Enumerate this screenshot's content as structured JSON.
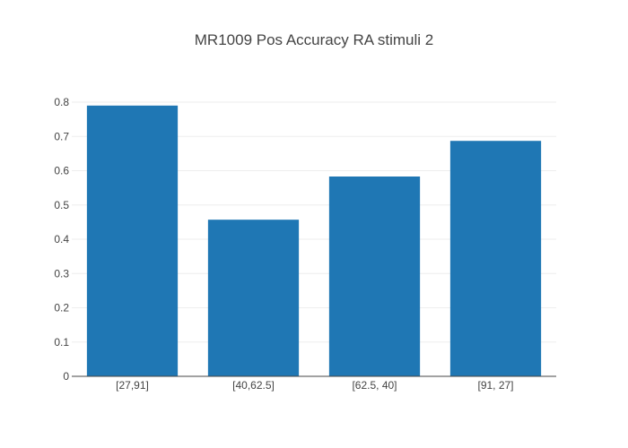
{
  "chart_data": {
    "type": "bar",
    "title": "MR1009 Pos Accuracy RA stimuli 2",
    "xlabel": "",
    "ylabel": "",
    "categories": [
      "[27,91]",
      "[40,62.5]",
      "[62.5, 40]",
      "[91, 27]"
    ],
    "values": [
      0.79,
      0.457,
      0.583,
      0.687
    ],
    "ylim": [
      0,
      0.8
    ],
    "yticks": [
      "0",
      "0.1",
      "0.2",
      "0.3",
      "0.4",
      "0.5",
      "0.6",
      "0.7",
      "0.8"
    ],
    "bar_color": "#1f77b4",
    "grid": true,
    "legend": "none"
  }
}
